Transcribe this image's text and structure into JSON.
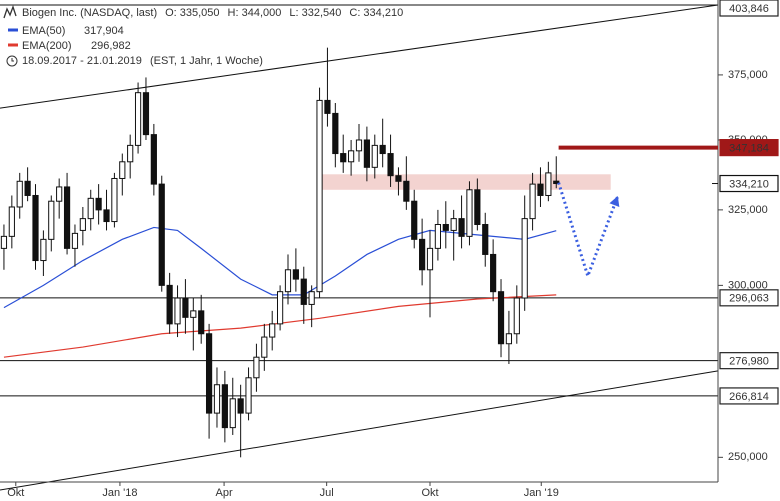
{
  "chart_data": {
    "type": "candlestick",
    "title": "Biogen Inc. (NASDAQ, last)",
    "quote": [
      "O: 335,050",
      "H: 344,000",
      "L: 332,540",
      "C: 334,210"
    ],
    "period": "18.09.2017 - 21.01.2019",
    "period_note": "(EST, 1 Jahr, 1 Woche)",
    "log_scale": true,
    "xlim": [
      -0.5,
      90.5
    ],
    "ylim": [
      242,
      406
    ],
    "yticks": [
      {
        "value": 250,
        "label": "250,000"
      },
      {
        "value": 300,
        "label": "300,000"
      },
      {
        "value": 325,
        "label": "325,000"
      },
      {
        "value": 350,
        "label": "350,000"
      },
      {
        "value": 375,
        "label": "375,000"
      }
    ],
    "xticks": [
      {
        "value": 1.5,
        "label": "Okt"
      },
      {
        "value": 14.7,
        "label": "Jan '18"
      },
      {
        "value": 27.9,
        "label": "Apr"
      },
      {
        "value": 40.9,
        "label": "Jul"
      },
      {
        "value": 54,
        "label": "Okt"
      },
      {
        "value": 68.1,
        "label": "Jan '19"
      }
    ],
    "up_color": "#ffffff",
    "down_color": "#111111",
    "open": [
      312,
      316,
      326,
      335,
      330,
      308,
      315,
      328,
      333,
      312,
      318,
      322,
      329,
      325,
      321,
      336,
      342,
      348,
      368,
      352,
      334,
      300,
      288,
      296,
      290,
      292,
      285,
      262,
      270,
      258,
      266,
      262,
      272,
      278,
      284,
      288,
      298,
      305,
      302,
      294,
      298,
      365,
      360,
      345,
      342,
      346,
      350,
      340,
      348,
      345,
      337,
      335,
      328,
      315,
      305,
      312,
      320,
      318,
      322,
      316,
      332,
      320,
      310,
      298,
      282,
      285,
      296,
      322,
      334,
      330,
      335.05
    ],
    "high": [
      320,
      330,
      338,
      340,
      334,
      318,
      330,
      336,
      338,
      320,
      326,
      332,
      334,
      332,
      338,
      345,
      352,
      372,
      374,
      356,
      337,
      304,
      300,
      302,
      296,
      297,
      288,
      275,
      274,
      272,
      270,
      275,
      282,
      288,
      292,
      300,
      310,
      312,
      306,
      300,
      370,
      386,
      364,
      352,
      350,
      356,
      355,
      352,
      358,
      352,
      340,
      344,
      332,
      322,
      318,
      325,
      328,
      325,
      330,
      335,
      336,
      324,
      315,
      302,
      292,
      300,
      330,
      338,
      340,
      342,
      344
    ],
    "low": [
      305,
      312,
      322,
      328,
      305,
      303,
      311,
      322,
      310,
      306,
      313,
      318,
      320,
      318,
      319,
      330,
      336,
      345,
      350,
      330,
      298,
      285,
      284,
      285,
      280,
      282,
      255,
      258,
      254,
      256,
      250,
      260,
      268,
      274,
      280,
      286,
      294,
      298,
      288,
      287,
      296,
      355,
      340,
      338,
      337,
      342,
      335,
      336,
      340,
      333,
      330,
      325,
      312,
      300,
      290,
      308,
      312,
      308,
      312,
      313,
      318,
      306,
      295,
      278,
      276,
      282,
      292,
      318,
      326,
      328,
      332.54
    ],
    "close": [
      316,
      326,
      335,
      330,
      308,
      315,
      328,
      333,
      312,
      317,
      322,
      329,
      325,
      321,
      336,
      342,
      348,
      368,
      352,
      334,
      300,
      288,
      296,
      290,
      292,
      285,
      262,
      270,
      258,
      266,
      262,
      272,
      278,
      284,
      288,
      298,
      305,
      302,
      294,
      298,
      365,
      360,
      345,
      342,
      346,
      350,
      340,
      348,
      345,
      337,
      335,
      328,
      315,
      305,
      312,
      320,
      318,
      322,
      316,
      332,
      320,
      310,
      298,
      282,
      285,
      296,
      322,
      334,
      330,
      338,
      334.21
    ],
    "series": [
      {
        "name": "EMA(50)",
        "last_label": "317,904",
        "color": "#2a4fd6",
        "x": [
          0,
          5,
          10,
          15,
          19,
          22,
          25,
          30,
          34,
          38,
          42,
          46,
          50,
          54,
          58,
          62,
          66,
          70
        ],
        "values": [
          293,
          300,
          308,
          315,
          319,
          318,
          312,
          302,
          297,
          297,
          303,
          310,
          315,
          318,
          317,
          316,
          315,
          317.904
        ]
      },
      {
        "name": "EMA(200)",
        "last_label": "296,982",
        "color": "#e03a2f",
        "x": [
          0,
          10,
          20,
          30,
          40,
          50,
          60,
          70
        ],
        "values": [
          278,
          281,
          285,
          286.7,
          289.7,
          293.4,
          295.7,
          296.982
        ]
      }
    ],
    "levels": [
      {
        "value": 403.846,
        "label": "403,846"
      },
      {
        "value": 296.063,
        "label": "296,063"
      },
      {
        "value": 276.98,
        "label": "276,980"
      },
      {
        "value": 266.814,
        "label": "266,814"
      }
    ],
    "last_price": {
      "value": 334.21,
      "label": "334,210"
    },
    "target": {
      "value": 347.184,
      "label": "347,184",
      "x": [
        70.3,
        90.5
      ],
      "color": "#a01818"
    },
    "trendlines": [
      {
        "x": [
          -0.5,
          90.5
        ],
        "values": [
          362,
          403.846
        ]
      },
      {
        "x": [
          -0.5,
          90.5
        ],
        "values": [
          241.5,
          274
        ]
      }
    ],
    "zone": {
      "x": [
        39.9,
        76.9
      ],
      "values": [
        332,
        337.5
      ],
      "color": "#f3d3d0"
    },
    "projection": {
      "x": [
        70.3,
        74,
        77.8
      ],
      "values": [
        334.5,
        303,
        329.8
      ],
      "color": "#3b5fe0"
    }
  }
}
